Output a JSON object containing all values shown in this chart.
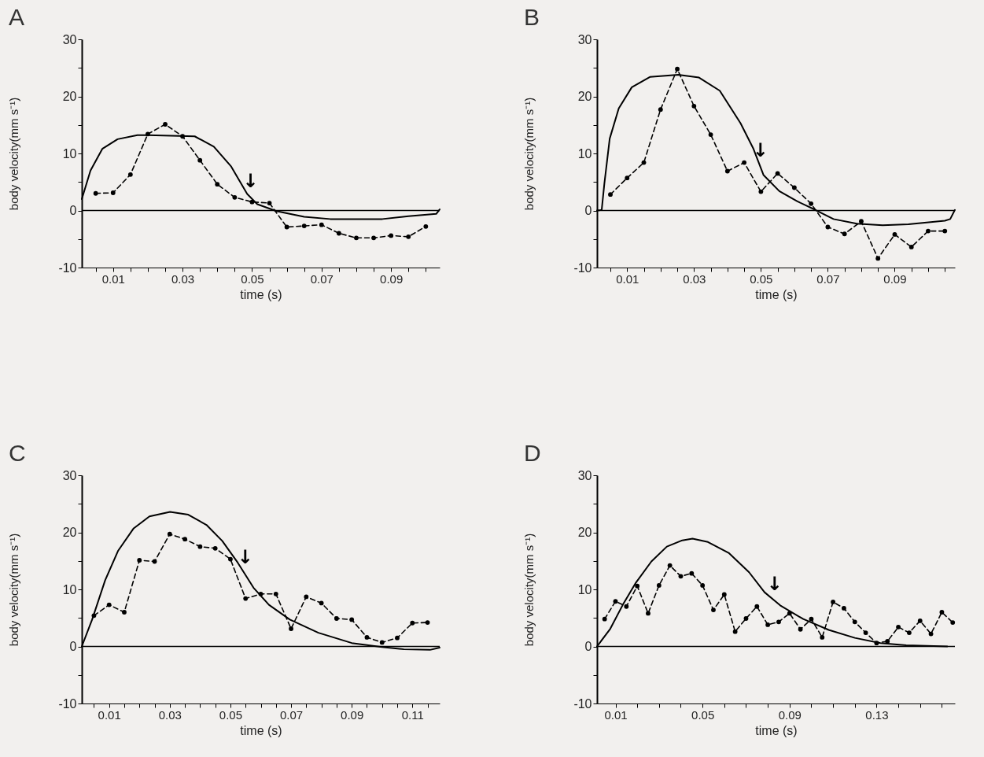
{
  "chart_data": [
    {
      "type": "line",
      "title": "A",
      "xlabel": "time (s)",
      "ylabel": "body velocity(mm s⁻¹)",
      "xlim": [
        0.001,
        0.104
      ],
      "ylim": [
        -10,
        30
      ],
      "xticks": [
        {
          "value": 0.005,
          "label": null
        },
        0.01,
        {
          "value": 0.015,
          "label": null
        },
        {
          "value": 0.02,
          "label": null
        },
        {
          "value": 0.025,
          "label": null
        },
        0.03,
        {
          "value": 0.035,
          "label": null
        },
        {
          "value": 0.04,
          "label": null
        },
        {
          "value": 0.045,
          "label": null
        },
        0.05,
        {
          "value": 0.055,
          "label": null
        },
        {
          "value": 0.06,
          "label": null
        },
        {
          "value": 0.065,
          "label": null
        },
        0.07,
        {
          "value": 0.075,
          "label": null
        },
        {
          "value": 0.08,
          "label": null
        },
        {
          "value": 0.085,
          "label": null
        },
        0.09,
        {
          "value": 0.095,
          "label": null
        },
        {
          "value": 0.1,
          "label": null
        }
      ],
      "yticks": [
        -10,
        {
          "value": -5,
          "label": null
        },
        0,
        {
          "value": 5,
          "label": null
        },
        10,
        {
          "value": 15,
          "label": null
        },
        20,
        {
          "value": 25,
          "label": null
        },
        30
      ],
      "ref_lines": [
        {
          "axis": "y",
          "value": 0,
          "color": "#000000"
        }
      ],
      "annotations": [
        {
          "text": "↓",
          "x": 0.0495,
          "y": 2.3
        }
      ],
      "series": [
        {
          "color": "#000000",
          "line_style": "solid",
          "marker": "none",
          "x": [
            0.001,
            0.0035,
            0.0069,
            0.0113,
            0.017,
            0.02,
            0.0335,
            0.039,
            0.044,
            0.0486,
            0.0515,
            0.057,
            0.065,
            0.0725,
            0.08,
            0.0875,
            0.095,
            0.103,
            0.104
          ],
          "values": [
            2.0,
            7.0,
            10.8,
            12.5,
            13.2,
            13.2,
            13.0,
            11.2,
            7.7,
            2.9,
            1.1,
            -0.1,
            -1.1,
            -1.5,
            -1.5,
            -1.5,
            -1.0,
            -0.6,
            0.2
          ]
        },
        {
          "color": "#000000",
          "line_style": "dashed",
          "marker": "circle",
          "x": [
            0.005,
            0.01,
            0.015,
            0.02,
            0.025,
            0.03,
            0.035,
            0.04,
            0.045,
            0.05,
            0.055,
            0.06,
            0.065,
            0.07,
            0.075,
            0.08,
            0.085,
            0.09,
            0.095,
            0.1
          ],
          "values": [
            3.0,
            3.1,
            6.3,
            13.4,
            15.1,
            13.0,
            8.8,
            4.6,
            2.3,
            1.5,
            1.3,
            -2.9,
            -2.7,
            -2.5,
            -4.0,
            -4.8,
            -4.8,
            -4.4,
            -4.6,
            -2.8
          ]
        }
      ]
    },
    {
      "type": "line",
      "title": "B",
      "xlabel": "time (s)",
      "ylabel": "body velocity(mm s⁻¹)",
      "xlim": [
        0.001,
        0.108
      ],
      "ylim": [
        -10,
        30
      ],
      "xticks": [
        {
          "value": 0.005,
          "label": null
        },
        0.01,
        {
          "value": 0.015,
          "label": null
        },
        {
          "value": 0.02,
          "label": null
        },
        {
          "value": 0.025,
          "label": null
        },
        0.03,
        {
          "value": 0.035,
          "label": null
        },
        {
          "value": 0.04,
          "label": null
        },
        {
          "value": 0.045,
          "label": null
        },
        0.05,
        {
          "value": 0.055,
          "label": null
        },
        {
          "value": 0.06,
          "label": null
        },
        {
          "value": 0.065,
          "label": null
        },
        0.07,
        {
          "value": 0.075,
          "label": null
        },
        {
          "value": 0.08,
          "label": null
        },
        {
          "value": 0.085,
          "label": null
        },
        0.09,
        {
          "value": 0.095,
          "label": null
        },
        {
          "value": 0.1,
          "label": null
        },
        {
          "value": 0.105,
          "label": null
        }
      ],
      "yticks": [
        -10,
        {
          "value": -5,
          "label": null
        },
        0,
        {
          "value": 5,
          "label": null
        },
        10,
        {
          "value": 15,
          "label": null
        },
        20,
        {
          "value": 25,
          "label": null
        },
        30
      ],
      "ref_lines": [
        {
          "axis": "y",
          "value": 0,
          "color": "#000000"
        }
      ],
      "annotations": [
        {
          "text": "↓",
          "x": 0.0498,
          "y": 7.7
        }
      ],
      "series": [
        {
          "color": "#000000",
          "line_style": "solid",
          "marker": "none",
          "x": [
            0.001,
            0.0024,
            0.0032,
            0.0048,
            0.0075,
            0.0114,
            0.0168,
            0.0253,
            0.0315,
            0.0377,
            0.0439,
            0.0477,
            0.0508,
            0.0555,
            0.0609,
            0.0663,
            0.0717,
            0.0787,
            0.0864,
            0.0941,
            0.105,
            0.1066,
            0.108
          ],
          "values": [
            0,
            0.1,
            4.7,
            12.6,
            17.9,
            21.6,
            23.4,
            23.8,
            23.3,
            21.0,
            15.3,
            10.9,
            6.2,
            3.4,
            1.6,
            0.1,
            -1.5,
            -2.3,
            -2.6,
            -2.4,
            -1.8,
            -1.5,
            0.1
          ]
        },
        {
          "color": "#000000",
          "line_style": "dashed",
          "marker": "circle",
          "x": [
            0.005,
            0.01,
            0.015,
            0.02,
            0.025,
            0.03,
            0.035,
            0.04,
            0.045,
            0.05,
            0.055,
            0.06,
            0.065,
            0.07,
            0.075,
            0.08,
            0.085,
            0.09,
            0.095,
            0.1,
            0.105
          ],
          "values": [
            2.8,
            5.7,
            8.4,
            17.7,
            24.8,
            18.3,
            13.3,
            6.9,
            8.4,
            3.3,
            6.5,
            4.0,
            1.2,
            -2.9,
            -4.1,
            -1.9,
            -8.4,
            -4.2,
            -6.4,
            -3.6,
            -3.6
          ]
        }
      ]
    },
    {
      "type": "line",
      "title": "C",
      "xlabel": "time (s)",
      "ylabel": "body velocity(mm s⁻¹)",
      "xlim": [
        0.001,
        0.119
      ],
      "ylim": [
        -10,
        30
      ],
      "xticks": [
        {
          "value": 0.005,
          "label": null
        },
        0.01,
        {
          "value": 0.015,
          "label": null
        },
        {
          "value": 0.02,
          "label": null
        },
        {
          "value": 0.025,
          "label": null
        },
        0.03,
        {
          "value": 0.035,
          "label": null
        },
        {
          "value": 0.04,
          "label": null
        },
        {
          "value": 0.045,
          "label": null
        },
        0.05,
        {
          "value": 0.055,
          "label": null
        },
        {
          "value": 0.06,
          "label": null
        },
        {
          "value": 0.065,
          "label": null
        },
        0.07,
        {
          "value": 0.075,
          "label": null
        },
        {
          "value": 0.08,
          "label": null
        },
        {
          "value": 0.085,
          "label": null
        },
        0.09,
        {
          "value": 0.095,
          "label": null
        },
        {
          "value": 0.1,
          "label": null
        },
        {
          "value": 0.105,
          "label": null
        },
        0.11,
        {
          "value": 0.115,
          "label": null
        }
      ],
      "yticks": [
        -10,
        {
          "value": -5,
          "label": null
        },
        0,
        {
          "value": 5,
          "label": null
        },
        10,
        {
          "value": 15,
          "label": null
        },
        20,
        {
          "value": 25,
          "label": null
        },
        30
      ],
      "ref_lines": [
        {
          "axis": "y",
          "value": 0,
          "color": "#000000"
        }
      ],
      "annotations": [
        {
          "text": "↓",
          "x": 0.0548,
          "y": 12.7
        }
      ],
      "series": [
        {
          "color": "#000000",
          "line_style": "solid",
          "marker": "none",
          "x": [
            0.001,
            0.0044,
            0.0087,
            0.013,
            0.0181,
            0.0233,
            0.0301,
            0.0361,
            0.0421,
            0.0473,
            0.0524,
            0.0576,
            0.0627,
            0.0696,
            0.079,
            0.09,
            0.1,
            0.1072,
            0.1158,
            0.119
          ],
          "values": [
            0,
            4.7,
            11.6,
            16.8,
            20.7,
            22.8,
            23.6,
            23.1,
            21.3,
            18.5,
            14.7,
            10.3,
            7.3,
            4.7,
            2.4,
            0.6,
            -0.1,
            -0.5,
            -0.6,
            -0.2
          ]
        },
        {
          "color": "#000000",
          "line_style": "dashed",
          "marker": "circle",
          "x": [
            0.005,
            0.01,
            0.015,
            0.02,
            0.025,
            0.03,
            0.035,
            0.04,
            0.045,
            0.05,
            0.055,
            0.06,
            0.065,
            0.07,
            0.075,
            0.08,
            0.085,
            0.09,
            0.095,
            0.1,
            0.105,
            0.11,
            0.115
          ],
          "values": [
            5.4,
            7.3,
            6.0,
            15.1,
            14.9,
            19.7,
            18.8,
            17.5,
            17.2,
            15.3,
            8.4,
            9.2,
            9.2,
            3.1,
            8.7,
            7.6,
            4.9,
            4.7,
            1.6,
            0.7,
            1.5,
            4.1,
            4.2
          ]
        }
      ]
    },
    {
      "type": "line",
      "title": "D",
      "xlabel": "time (s)",
      "ylabel": "body velocity(mm s⁻¹)",
      "xlim": [
        0.0015,
        0.166
      ],
      "ylim": [
        -10,
        30
      ],
      "xticks": [
        0.01,
        {
          "value": 0.02,
          "label": null
        },
        {
          "value": 0.03,
          "label": null
        },
        {
          "value": 0.04,
          "label": null
        },
        0.05,
        {
          "value": 0.06,
          "label": null
        },
        {
          "value": 0.07,
          "label": null
        },
        {
          "value": 0.08,
          "label": null
        },
        0.09,
        {
          "value": 0.1,
          "label": null
        },
        {
          "value": 0.11,
          "label": null
        },
        {
          "value": 0.12,
          "label": null
        },
        0.13,
        {
          "value": 0.14,
          "label": null
        },
        {
          "value": 0.15,
          "label": null
        },
        {
          "value": 0.16,
          "label": null
        }
      ],
      "yticks": [
        -10,
        {
          "value": -5,
          "label": null
        },
        0,
        {
          "value": 5,
          "label": null
        },
        10,
        {
          "value": 15,
          "label": null
        },
        20,
        {
          "value": 25,
          "label": null
        },
        30
      ],
      "ref_lines": [
        {
          "axis": "y",
          "value": 0,
          "color": "#000000"
        }
      ],
      "annotations": [
        {
          "text": "↓",
          "x": 0.083,
          "y": 8.1
        }
      ],
      "series": [
        {
          "color": "#000000",
          "line_style": "solid",
          "marker": "none",
          "x": [
            0.0015,
            0.0076,
            0.0135,
            0.0194,
            0.0265,
            0.0336,
            0.0407,
            0.0454,
            0.0525,
            0.062,
            0.0714,
            0.0785,
            0.0857,
            0.0963,
            0.108,
            0.12,
            0.1318,
            0.1436,
            0.1625
          ],
          "values": [
            0,
            3.1,
            7.4,
            11.2,
            14.9,
            17.5,
            18.6,
            18.9,
            18.3,
            16.4,
            13.0,
            9.5,
            7.2,
            4.8,
            2.9,
            1.5,
            0.6,
            0.2,
            0
          ]
        },
        {
          "color": "#000000",
          "line_style": "dashed",
          "marker": "circle",
          "x": [
            0.005,
            0.01,
            0.015,
            0.02,
            0.025,
            0.03,
            0.035,
            0.04,
            0.045,
            0.05,
            0.055,
            0.06,
            0.065,
            0.07,
            0.075,
            0.08,
            0.085,
            0.09,
            0.095,
            0.1,
            0.105,
            0.11,
            0.115,
            0.12,
            0.125,
            0.13,
            0.135,
            0.14,
            0.145,
            0.15,
            0.155,
            0.16,
            0.165
          ],
          "values": [
            4.8,
            7.9,
            7.0,
            10.6,
            5.8,
            10.7,
            14.2,
            12.3,
            12.8,
            10.7,
            6.4,
            9.1,
            2.6,
            4.9,
            7.0,
            3.8,
            4.3,
            5.8,
            3.0,
            4.8,
            1.6,
            7.8,
            6.7,
            4.3,
            2.4,
            0.6,
            0.9,
            3.4,
            2.4,
            4.5,
            2.2,
            6.0,
            4.2
          ]
        }
      ]
    }
  ]
}
